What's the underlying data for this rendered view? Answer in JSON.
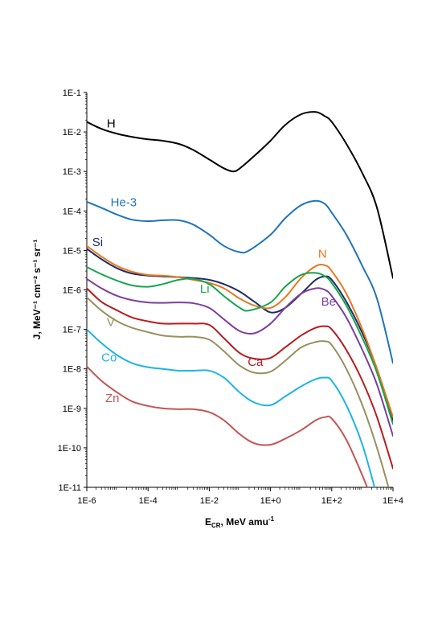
{
  "chart_data": {
    "type": "line",
    "xscale": "log",
    "yscale": "log",
    "xlim": [
      1e-06,
      10000.0
    ],
    "ylim": [
      1e-11,
      0.1
    ],
    "xlabel": {
      "main": "E",
      "sub": "CR",
      "rest": ", MeV amu",
      "sup": "-1"
    },
    "ylabel": "J, MeV⁻¹ cm⁻² s⁻¹ sr⁻¹",
    "xticks": [
      {
        "value": 1e-06,
        "label": "1E-6"
      },
      {
        "value": 0.0001,
        "label": "1E-4"
      },
      {
        "value": 0.01,
        "label": "1E-2"
      },
      {
        "value": 1.0,
        "label": "1E+0"
      },
      {
        "value": 100.0,
        "label": "1E+2"
      },
      {
        "value": 10000.0,
        "label": "1E+4"
      }
    ],
    "yticks": [
      {
        "value": 0.1,
        "label": "1E-1"
      },
      {
        "value": 0.01,
        "label": "1E-2"
      },
      {
        "value": 0.001,
        "label": "1E-3"
      },
      {
        "value": 0.0001,
        "label": "1E-4"
      },
      {
        "value": 1e-05,
        "label": "1E-5"
      },
      {
        "value": 1e-06,
        "label": "1E-6"
      },
      {
        "value": 1e-07,
        "label": "1E-7"
      },
      {
        "value": 1e-08,
        "label": "1E-8"
      },
      {
        "value": 1e-09,
        "label": "1E-9"
      },
      {
        "value": 1e-10,
        "label": "1E-10"
      },
      {
        "value": 1e-11,
        "label": "1E-11"
      }
    ],
    "grid": false,
    "legend": "inline labels",
    "series": [
      {
        "name": "H",
        "color": "#000000",
        "label_at": [
          4.5e-06,
          0.013
        ],
        "x": [
          1e-06,
          3e-06,
          1e-05,
          3e-05,
          0.0001,
          0.0003,
          0.001,
          0.003,
          0.01,
          0.03,
          0.06,
          0.1,
          0.3,
          1,
          3,
          10,
          30,
          60,
          100,
          300,
          1000,
          3000,
          10000
        ],
        "y": [
          0.018,
          0.012,
          0.009,
          0.0075,
          0.0065,
          0.006,
          0.005,
          0.0035,
          0.002,
          0.0012,
          0.001,
          0.0012,
          0.0025,
          0.006,
          0.015,
          0.028,
          0.032,
          0.025,
          0.018,
          0.005,
          0.0009,
          0.00012,
          2e-06
        ]
      },
      {
        "name": "He-3",
        "color": "#1F74B8",
        "label_at": [
          6e-06,
          0.00013
        ],
        "x": [
          1e-06,
          3e-06,
          1e-05,
          3e-05,
          0.0001,
          0.0003,
          0.001,
          0.003,
          0.01,
          0.03,
          0.1,
          0.2,
          1,
          3,
          10,
          30,
          60,
          100,
          300,
          1000,
          3000,
          10000
        ],
        "y": [
          0.00017,
          0.00012,
          8e-05,
          6e-05,
          5.5e-05,
          5.8e-05,
          5.8e-05,
          4.5e-05,
          2.5e-05,
          1.3e-05,
          9e-06,
          1e-05,
          2.5e-05,
          6.5e-05,
          0.00014,
          0.00018,
          0.00015,
          9e-05,
          2.5e-05,
          4e-06,
          6e-07,
          1.4e-08
        ]
      },
      {
        "name": "Si",
        "color": "#1F2B6B",
        "label_at": [
          1.5e-06,
          1.3e-05
        ],
        "x": [
          1e-06,
          3e-06,
          1e-05,
          3e-05,
          0.0001,
          0.0003,
          0.001,
          0.003,
          0.01,
          0.03,
          0.1,
          0.3,
          1,
          3,
          10,
          30,
          60,
          100,
          300,
          1000,
          3000,
          10000
        ],
        "y": [
          1.1e-05,
          6e-06,
          3.5e-06,
          2.6e-06,
          2.3e-06,
          2.2e-06,
          2.1e-06,
          2e-06,
          1.8e-06,
          1.4e-06,
          9e-07,
          5e-07,
          2.7e-07,
          3.5e-07,
          8e-07,
          1.8e-06,
          2.2e-06,
          1.8e-06,
          5e-07,
          8e-08,
          1e-08,
          5e-10
        ]
      },
      {
        "name": "N",
        "color": "#E8781E",
        "label_at": [
          36.0,
          6.5e-06
        ],
        "x": [
          1e-06,
          3e-06,
          1e-05,
          3e-05,
          0.0001,
          0.0003,
          0.001,
          0.003,
          0.01,
          0.03,
          0.1,
          0.3,
          1,
          3,
          10,
          30,
          60,
          100,
          300,
          1000,
          3000,
          10000
        ],
        "y": [
          1.3e-05,
          7e-06,
          4e-06,
          2.9e-06,
          2.4e-06,
          2.3e-06,
          2.1e-06,
          1.8e-06,
          1.5e-06,
          1.1e-06,
          6e-07,
          4e-07,
          3.5e-07,
          6.5e-07,
          2e-06,
          4e-06,
          4.2e-06,
          3e-06,
          8e-07,
          1e-07,
          1e-08,
          6e-10
        ]
      },
      {
        "name": "Li",
        "color": "#16A54E",
        "label_at": [
          0.005,
          8.5e-07
        ],
        "x": [
          1e-06,
          3e-06,
          1e-05,
          3e-05,
          0.0001,
          0.0003,
          0.001,
          0.003,
          0.01,
          0.03,
          0.1,
          0.2,
          1,
          3,
          10,
          30,
          60,
          100,
          300,
          1000,
          3000,
          10000
        ],
        "y": [
          3.8e-06,
          2.5e-06,
          1.7e-06,
          1.3e-06,
          1.2e-06,
          1.4e-06,
          1.8e-06,
          1.9e-06,
          1.4e-06,
          7e-07,
          3.5e-07,
          3e-07,
          4.8e-07,
          1.2e-06,
          2.4e-06,
          2.7e-06,
          2.2e-06,
          1.5e-06,
          4e-07,
          6e-08,
          8e-09,
          4e-10
        ]
      },
      {
        "name": "Be",
        "color": "#7B3F9E",
        "label_at": [
          45.0,
          4e-07
        ],
        "x": [
          1e-06,
          3e-06,
          1e-05,
          3e-05,
          0.0001,
          0.0003,
          0.001,
          0.003,
          0.01,
          0.03,
          0.1,
          0.3,
          1,
          3,
          10,
          30,
          60,
          100,
          300,
          1000,
          3000,
          10000
        ],
        "y": [
          1.9e-06,
          1.1e-06,
          7e-07,
          5.5e-07,
          4.8e-07,
          4.7e-07,
          4.8e-07,
          4.6e-07,
          3.5e-07,
          1.8e-07,
          9e-08,
          8e-08,
          1.4e-07,
          3.5e-07,
          8e-07,
          1.1e-06,
          1e-06,
          7e-07,
          2e-07,
          3e-08,
          4e-09,
          2e-10
        ]
      },
      {
        "name": "Ca",
        "color": "#B81B1F",
        "label_at": [
          0.18,
          1.2e-08
        ],
        "x": [
          1e-06,
          3e-06,
          1e-05,
          3e-05,
          0.0001,
          0.0003,
          0.001,
          0.003,
          0.01,
          0.03,
          0.1,
          0.3,
          1,
          3,
          10,
          30,
          60,
          100,
          300,
          1000,
          3000,
          10000
        ],
        "y": [
          1.1e-06,
          5e-07,
          3e-07,
          2e-07,
          1.6e-07,
          1.4e-07,
          1.4e-07,
          1.4e-07,
          1.3e-07,
          6e-08,
          2.5e-08,
          1.8e-08,
          1.9e-08,
          3.5e-08,
          7e-08,
          1.1e-07,
          1.2e-07,
          1e-07,
          3e-08,
          5e-09,
          6e-10,
          3e-11
        ]
      },
      {
        "name": "V",
        "color": "#9A8F5E",
        "label_at": [
          4.5e-06,
          1.2e-07
        ],
        "x": [
          1e-06,
          3e-06,
          1e-05,
          3e-05,
          0.0001,
          0.0003,
          0.001,
          0.003,
          0.01,
          0.03,
          0.1,
          0.3,
          1,
          3,
          10,
          30,
          60,
          100,
          300,
          1000,
          3000,
          10000
        ],
        "y": [
          6.5e-07,
          3e-07,
          1.6e-07,
          1.1e-07,
          8.5e-08,
          7e-08,
          6.5e-08,
          6.5e-08,
          5.5e-08,
          2.8e-08,
          1.2e-08,
          8e-09,
          8.5e-09,
          1.6e-08,
          3.5e-08,
          4.8e-08,
          5e-08,
          4e-08,
          1e-08,
          1.2e-09,
          1e-10,
          4e-12
        ]
      },
      {
        "name": "Co",
        "color": "#1FB3E8",
        "label_at": [
          3e-06,
          1.55e-08
        ],
        "x": [
          1e-06,
          3e-06,
          1e-05,
          3e-05,
          0.0001,
          0.0003,
          0.001,
          0.003,
          0.01,
          0.03,
          0.1,
          0.3,
          1,
          3,
          10,
          30,
          60,
          100,
          300,
          1000,
          3000
        ],
        "y": [
          1e-07,
          4.5e-08,
          2.2e-08,
          1.4e-08,
          1.1e-08,
          1e-08,
          9e-09,
          9e-09,
          9e-09,
          6e-09,
          2.5e-09,
          1.4e-09,
          1.2e-09,
          2e-09,
          3.6e-09,
          5.5e-09,
          6e-09,
          5e-09,
          1.2e-09,
          1.2e-10,
          6e-12
        ]
      },
      {
        "name": "Zn",
        "color": "#C65454",
        "label_at": [
          4e-06,
          1.45e-09
        ],
        "x": [
          1e-06,
          3e-06,
          1e-05,
          3e-05,
          0.0001,
          0.0003,
          0.001,
          0.003,
          0.01,
          0.03,
          0.1,
          0.3,
          1,
          3,
          10,
          30,
          60,
          100,
          300,
          1000,
          1700
        ],
        "y": [
          1.15e-08,
          5e-09,
          2.5e-09,
          1.5e-09,
          1.15e-09,
          1e-09,
          9.5e-10,
          9.5e-10,
          8e-10,
          5e-10,
          2.2e-10,
          1.3e-10,
          1.2e-10,
          1.7e-10,
          2.8e-10,
          5e-10,
          6e-10,
          5.5e-10,
          1.6e-10,
          2e-11,
          7e-12
        ]
      }
    ]
  }
}
